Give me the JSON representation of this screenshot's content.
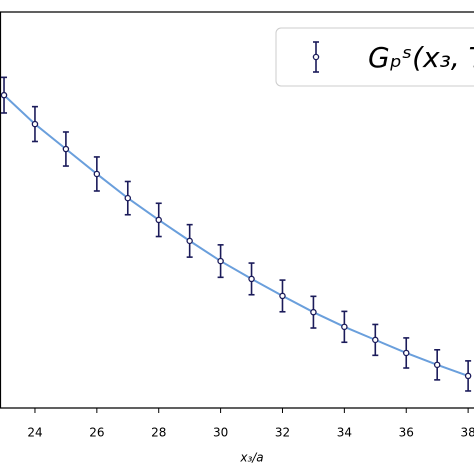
{
  "chart_data": {
    "type": "errorbar",
    "x_label": "x₃/a",
    "x": [
      23,
      24,
      25,
      26,
      27,
      28,
      29,
      30,
      31,
      32,
      33,
      34,
      35,
      36,
      37,
      38
    ],
    "series": [
      {
        "name": "Gₚˢ(x₃, T",
        "color": "#1b1b5a",
        "values": [
          79.0,
          71.7,
          65.4,
          59.1,
          53.0,
          47.5,
          42.2,
          37.1,
          32.6,
          28.3,
          24.2,
          20.5,
          17.2,
          13.9,
          10.9,
          8.1
        ],
        "errors": [
          4.5,
          4.4,
          4.3,
          4.3,
          4.2,
          4.2,
          4.1,
          4.1,
          4.0,
          4.0,
          4.0,
          3.9,
          3.9,
          3.8,
          3.8,
          3.8
        ]
      },
      {
        "color": "#6a9fdc",
        "values": [
          79.0,
          71.7,
          65.4,
          59.1,
          53.0,
          47.5,
          42.2,
          37.1,
          32.6,
          28.3,
          24.2,
          20.5,
          17.2,
          13.9,
          10.9,
          8.1
        ]
      }
    ],
    "xlim": [
      22.87,
      38.19
    ],
    "ylim": [
      0,
      100
    ],
    "xticks": [
      24,
      26,
      28,
      30,
      32,
      34,
      36,
      38
    ]
  }
}
